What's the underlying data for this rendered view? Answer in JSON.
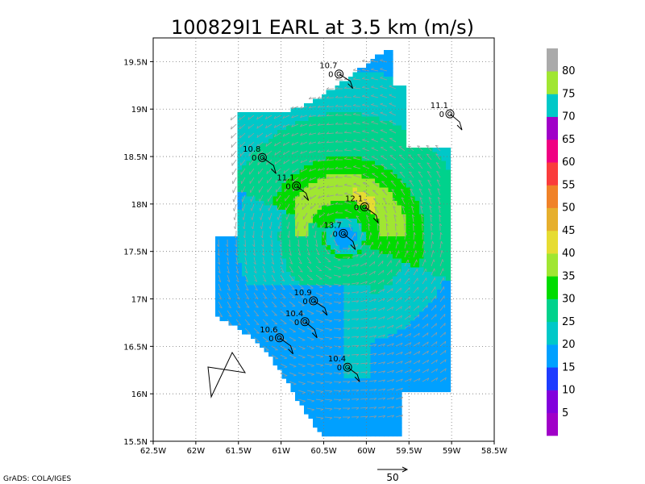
{
  "chart_data": {
    "type": "heatmap",
    "title": "100829I1 EARL at 3.5 km (m/s)",
    "credit": "GrADS: COLA/IGES",
    "xlim": [
      -62.5,
      -58.5
    ],
    "ylim": [
      15.5,
      19.75
    ],
    "grid": true,
    "x_ticks": [
      {
        "value": -62.5,
        "label": "62.5W"
      },
      {
        "value": -62.0,
        "label": "62W"
      },
      {
        "value": -61.5,
        "label": "61.5W"
      },
      {
        "value": -61.0,
        "label": "61W"
      },
      {
        "value": -60.5,
        "label": "60.5W"
      },
      {
        "value": -60.0,
        "label": "60W"
      },
      {
        "value": -59.5,
        "label": "59.5W"
      },
      {
        "value": -59.0,
        "label": "59W"
      },
      {
        "value": -58.5,
        "label": "58.5W"
      }
    ],
    "y_ticks": [
      {
        "value": 15.5,
        "label": "15.5N"
      },
      {
        "value": 16.0,
        "label": "16N"
      },
      {
        "value": 16.5,
        "label": "16.5N"
      },
      {
        "value": 17.0,
        "label": "17N"
      },
      {
        "value": 17.5,
        "label": "17.5N"
      },
      {
        "value": 18.0,
        "label": "18N"
      },
      {
        "value": 18.5,
        "label": "18.5N"
      },
      {
        "value": 19.0,
        "label": "19N"
      },
      {
        "value": 19.5,
        "label": "19.5N"
      }
    ],
    "colorbar": [
      {
        "label": "",
        "color": "#a000c8"
      },
      {
        "label": "5",
        "color": "#8200dc"
      },
      {
        "label": "10",
        "color": "#1e3cff"
      },
      {
        "label": "15",
        "color": "#00a0ff"
      },
      {
        "label": "20",
        "color": "#00c8c8"
      },
      {
        "label": "25",
        "color": "#00d28c"
      },
      {
        "label": "30",
        "color": "#00dc00"
      },
      {
        "label": "35",
        "color": "#a0e632"
      },
      {
        "label": "40",
        "color": "#e6dc32"
      },
      {
        "label": "45",
        "color": "#e6af2d"
      },
      {
        "label": "50",
        "color": "#f08228"
      },
      {
        "label": "55",
        "color": "#fa3c3c"
      },
      {
        "label": "60",
        "color": "#f00082"
      },
      {
        "label": "65",
        "color": "#a000c8"
      },
      {
        "label": "70",
        "color": "#00c8c8"
      },
      {
        "label": "75",
        "color": "#a0e632"
      },
      {
        "label": "80",
        "color": "#aaaaaa"
      }
    ],
    "center": {
      "lon": -60.28,
      "lat": 17.68
    },
    "observations": [
      {
        "lon": -60.32,
        "lat": 19.37,
        "value": "10.7",
        "flag": "0"
      },
      {
        "lon": -59.02,
        "lat": 18.95,
        "value": "11.1",
        "flag": "0"
      },
      {
        "lon": -61.22,
        "lat": 18.49,
        "value": "10.8",
        "flag": "0"
      },
      {
        "lon": -60.82,
        "lat": 18.19,
        "value": "11.1",
        "flag": "0"
      },
      {
        "lon": -60.02,
        "lat": 17.97,
        "value": "12.1",
        "flag": "0"
      },
      {
        "lon": -60.27,
        "lat": 17.69,
        "value": "13.7",
        "flag": "0"
      },
      {
        "lon": -60.62,
        "lat": 16.98,
        "value": "10.9",
        "flag": "0"
      },
      {
        "lon": -60.72,
        "lat": 16.76,
        "value": "10.4",
        "flag": "0"
      },
      {
        "lon": -61.02,
        "lat": 16.59,
        "value": "10.6",
        "flag": "0"
      },
      {
        "lon": -60.22,
        "lat": 16.28,
        "value": "10.4",
        "flag": "0"
      }
    ],
    "reference_vector": {
      "label": "50"
    }
  }
}
